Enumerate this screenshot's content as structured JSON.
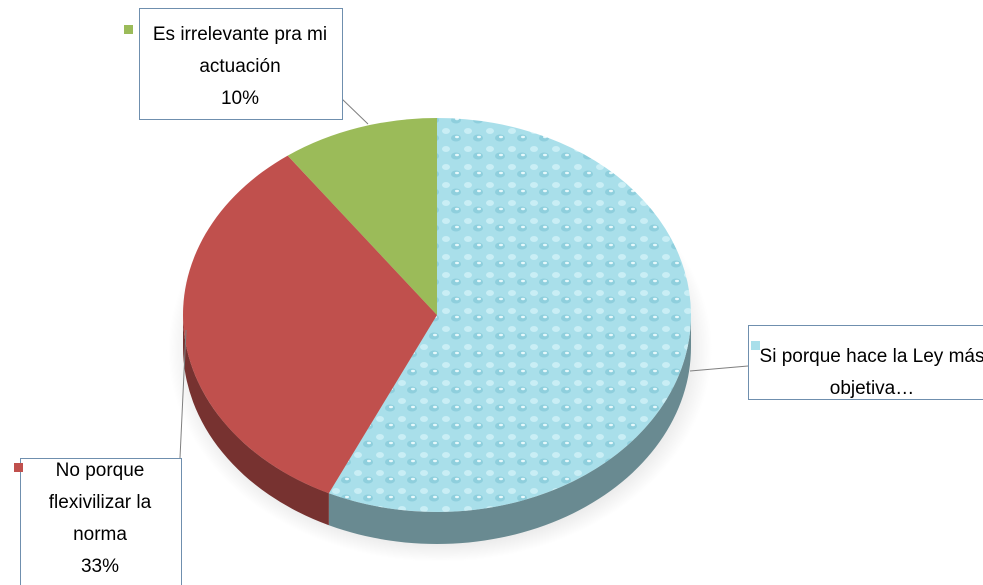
{
  "chart_data": {
    "type": "pie",
    "categories": [
      "Si porque hace la Ley más objetiva…",
      "No porque flexivilizar la norma",
      "Es irrelevante pra mi actuación"
    ],
    "values": [
      57,
      33,
      10
    ],
    "value_labels": [
      null,
      "33%",
      "10%"
    ],
    "colors": [
      "#a9dfea",
      "#c0504d",
      "#9bbb59"
    ],
    "three_d": true
  }
}
